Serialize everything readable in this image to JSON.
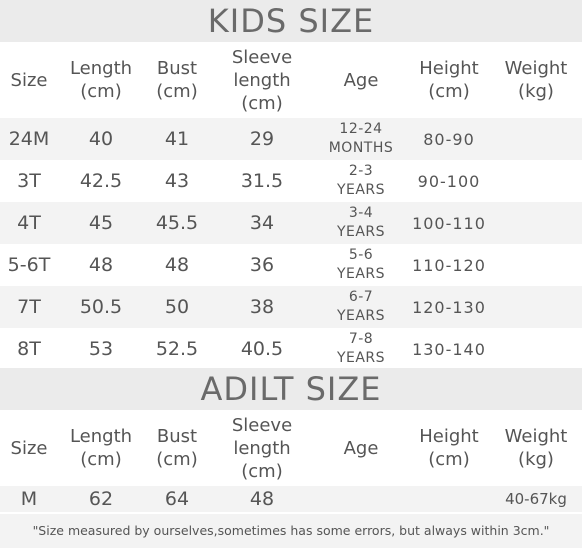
{
  "kids": {
    "title": "KIDS SIZE",
    "headers": {
      "size": "Size",
      "length": [
        "Length",
        "(cm)"
      ],
      "bust": [
        "Bust",
        "(cm)"
      ],
      "sleeve": [
        "Sleeve",
        "length",
        "(cm)"
      ],
      "age": "Age",
      "height": [
        "Height",
        "(cm)"
      ],
      "weight": [
        "Weight",
        "(kg)"
      ]
    },
    "rows": [
      {
        "size": "24M",
        "length": "40",
        "bust": "41",
        "sleeve": "29",
        "age": [
          "12-24",
          "MONTHS"
        ],
        "height": "80-90",
        "weight": ""
      },
      {
        "size": "3T",
        "length": "42.5",
        "bust": "43",
        "sleeve": "31.5",
        "age": [
          "2-3",
          "YEARS"
        ],
        "height": "90-100",
        "weight": ""
      },
      {
        "size": "4T",
        "length": "45",
        "bust": "45.5",
        "sleeve": "34",
        "age": [
          "3-4",
          "YEARS"
        ],
        "height": "100-110",
        "weight": ""
      },
      {
        "size": "5-6T",
        "length": "48",
        "bust": "48",
        "sleeve": "36",
        "age": [
          "5-6",
          "YEARS"
        ],
        "height": "110-120",
        "weight": ""
      },
      {
        "size": "7T",
        "length": "50.5",
        "bust": "50",
        "sleeve": "38",
        "age": [
          "6-7",
          "YEARS"
        ],
        "height": "120-130",
        "weight": ""
      },
      {
        "size": "8T",
        "length": "53",
        "bust": "52.5",
        "sleeve": "40.5",
        "age": [
          "7-8",
          "YEARS"
        ],
        "height": "130-140",
        "weight": ""
      }
    ]
  },
  "adult": {
    "title": "ADILT SIZE",
    "headers": {
      "size": "Size",
      "length": [
        "Length",
        "(cm)"
      ],
      "bust": [
        "Bust",
        "(cm)"
      ],
      "sleeve": [
        "Sleeve",
        "length",
        "(cm)"
      ],
      "age": "Age",
      "height": [
        "Height",
        "(cm)"
      ],
      "weight": [
        "Weight",
        "(kg)"
      ]
    },
    "rows": [
      {
        "size": "M",
        "length": "62",
        "bust": "64",
        "sleeve": "48",
        "age": "",
        "height": "",
        "weight": "40-67kg"
      }
    ]
  },
  "note": "\"Size measured by ourselves,sometimes has some errors, but always within 3cm.\"",
  "colors": {
    "banner_bg": "#ebebeb",
    "row_shade": "#f3f3f3",
    "text": "#555555"
  }
}
